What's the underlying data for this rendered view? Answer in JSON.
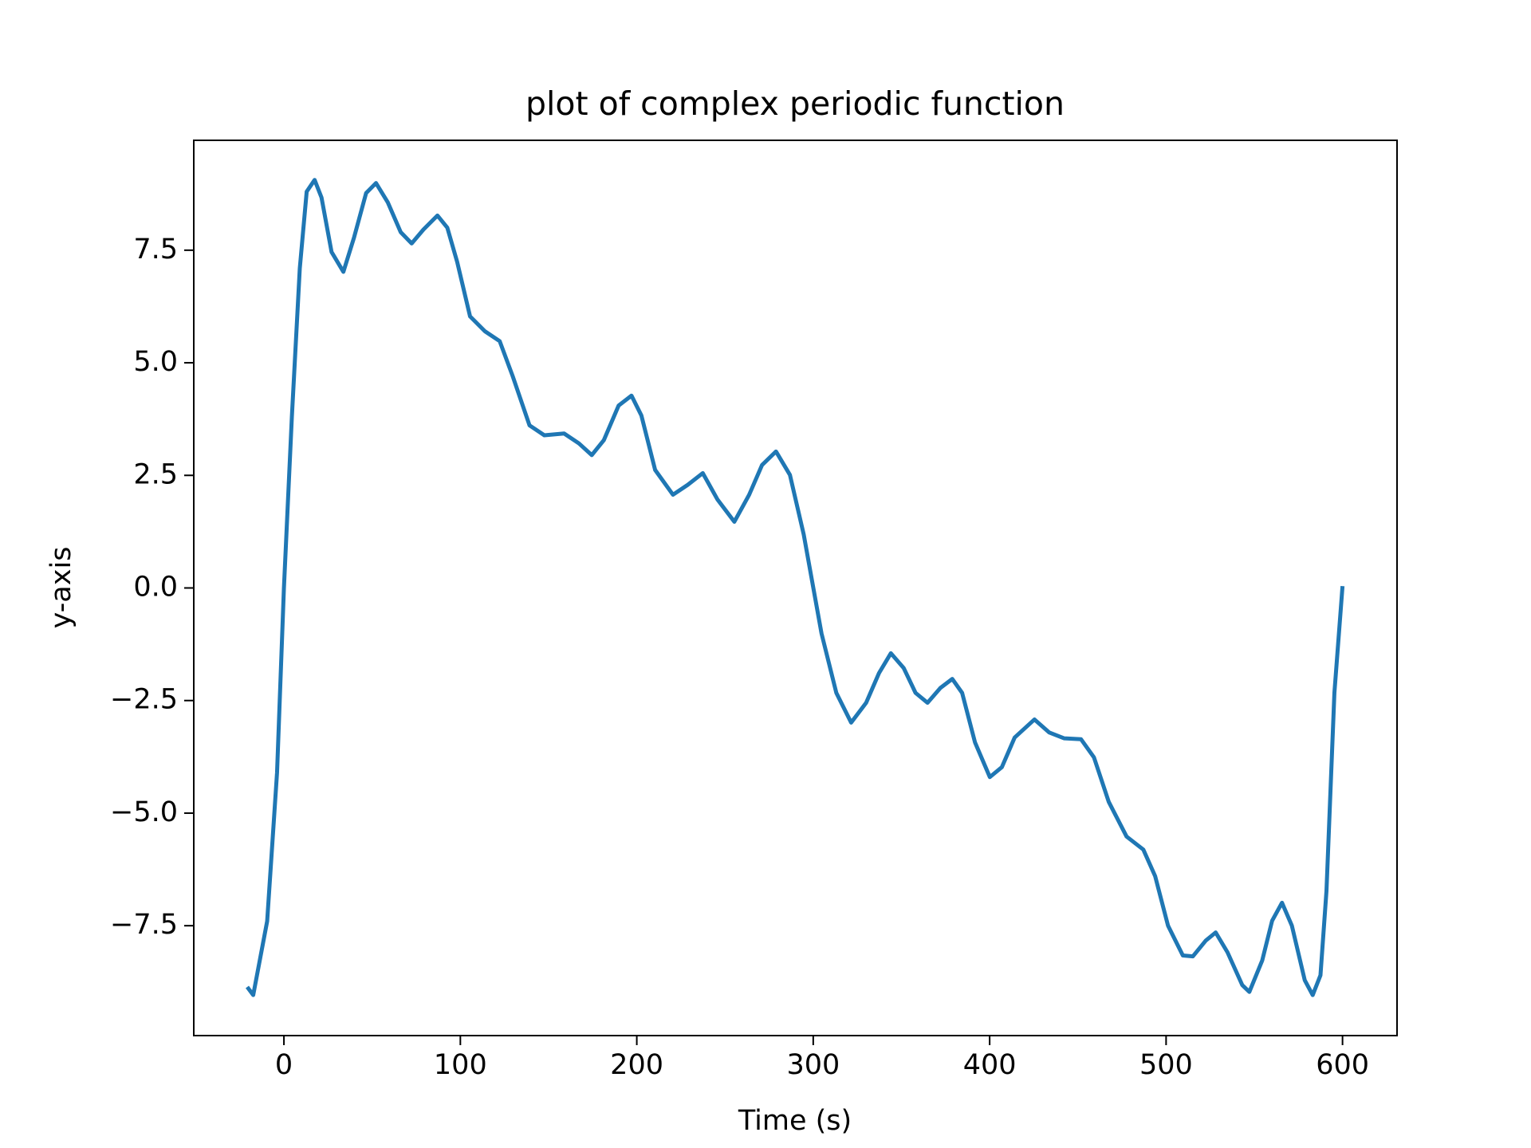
{
  "chart_data": {
    "type": "line",
    "title": "plot of complex periodic function",
    "x_label": "Time (s)",
    "y_label": "y-axis",
    "x": [
      -20.8,
      -17.4,
      -9.5,
      -3.9,
      0,
      4.5,
      9,
      12.9,
      17.4,
      21.3,
      27,
      33.7,
      39.8,
      46.6,
      52.2,
      58.9,
      66.2,
      72.4,
      79.1,
      87,
      92.6,
      98.2,
      105.5,
      113.9,
      122.3,
      129.6,
      139.2,
      147.6,
      158.8,
      167.2,
      174.5,
      181.3,
      189.7,
      197,
      202.6,
      210.4,
      220.5,
      228.9,
      237.4,
      245.8,
      255.3,
      263.7,
      271,
      278.9,
      286.8,
      294.6,
      304.7,
      313.1,
      321.5,
      330,
      337.3,
      344,
      351.3,
      358,
      364.8,
      372.1,
      378.8,
      384.4,
      391.7,
      400.1,
      406.9,
      414.2,
      425.4,
      433.8,
      442.3,
      451.8,
      459.1,
      467.5,
      477.6,
      487.1,
      493.8,
      501.1,
      509.5,
      515.2,
      522.5,
      528.1,
      534.8,
      543.2,
      547.2,
      554.5,
      560.1,
      565.7,
      571.3,
      578.6,
      583.1,
      587.5,
      590.9,
      595.4,
      600
    ],
    "series": [
      {
        "color": "#1f77b4",
        "values": [
          -8.86,
          -9.04,
          -7.4,
          -4.1,
          0,
          3.8,
          7.1,
          8.8,
          9.06,
          8.67,
          7.46,
          7.02,
          7.79,
          8.77,
          8.99,
          8.56,
          7.9,
          7.65,
          7.96,
          8.27,
          8.0,
          7.24,
          6.03,
          5.7,
          5.48,
          4.71,
          3.61,
          3.39,
          3.43,
          3.21,
          2.95,
          3.28,
          4.05,
          4.27,
          3.83,
          2.62,
          2.07,
          2.29,
          2.55,
          1.96,
          1.47,
          2.07,
          2.73,
          3.03,
          2.51,
          1.19,
          -1.01,
          -2.33,
          -2.99,
          -2.55,
          -1.89,
          -1.45,
          -1.78,
          -2.33,
          -2.55,
          -2.22,
          -2.02,
          -2.33,
          -3.43,
          -4.2,
          -3.98,
          -3.32,
          -2.92,
          -3.21,
          -3.34,
          -3.36,
          -3.76,
          -4.75,
          -5.52,
          -5.81,
          -6.4,
          -7.5,
          -8.16,
          -8.18,
          -7.83,
          -7.65,
          -8.09,
          -8.82,
          -8.97,
          -8.27,
          -7.39,
          -6.99,
          -7.5,
          -8.71,
          -9.04,
          -8.6,
          -6.73,
          -2.33,
          0.04
        ]
      }
    ],
    "xlim": [
      -51.1,
      630.9
    ],
    "ylim": [
      -9.94,
      9.94
    ],
    "xticks": [
      0,
      100,
      200,
      300,
      400,
      500,
      600
    ],
    "yticks": [
      {
        "value": -7.5,
        "label": "−7.5"
      },
      {
        "value": -5,
        "label": "−5.0"
      },
      {
        "value": -2.5,
        "label": "−2.5"
      },
      {
        "value": 0,
        "label": "0.0"
      },
      2.5,
      {
        "value": 5,
        "label": "5.0"
      },
      7.5
    ]
  }
}
